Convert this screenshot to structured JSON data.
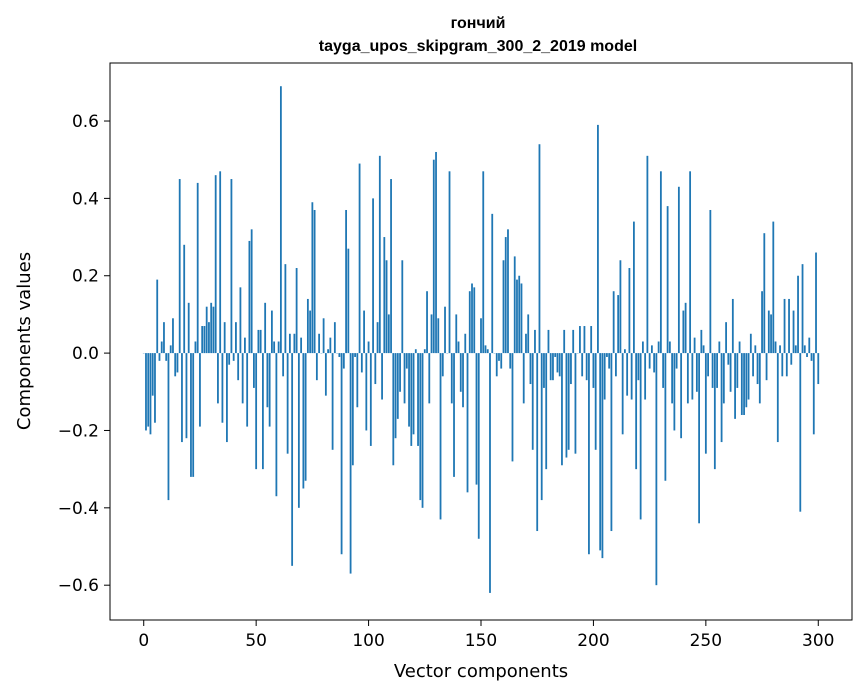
{
  "chart_data": {
    "type": "bar",
    "title": "гончий",
    "subtitle": "tayga_upos_skipgram_300_2_2019 model",
    "xlabel": "Vector components",
    "ylabel": "Components values",
    "xlim": [
      -15,
      315
    ],
    "ylim": [
      -0.69,
      0.75
    ],
    "xticks": [
      0,
      50,
      100,
      150,
      200,
      250,
      300
    ],
    "xtick_labels": [
      "0",
      "50",
      "100",
      "150",
      "200",
      "250",
      "300"
    ],
    "yticks": [
      -0.6,
      -0.4,
      -0.2,
      0.0,
      0.2,
      0.4,
      0.6
    ],
    "ytick_labels": [
      "−0.6",
      "−0.4",
      "−0.2",
      "0.0",
      "0.2",
      "0.4",
      "0.6"
    ],
    "bar_color": "#1f77b4",
    "grid": false,
    "legend": "none",
    "values": [
      0.0,
      -0.2,
      -0.19,
      -0.21,
      -0.11,
      -0.18,
      0.19,
      -0.02,
      0.03,
      0.08,
      -0.02,
      -0.38,
      0.02,
      0.09,
      -0.06,
      -0.05,
      0.45,
      -0.23,
      0.28,
      -0.22,
      0.13,
      -0.32,
      -0.32,
      0.03,
      0.44,
      -0.19,
      0.07,
      0.07,
      0.12,
      0.08,
      0.13,
      0.12,
      0.46,
      -0.13,
      0.47,
      -0.18,
      0.08,
      -0.23,
      -0.03,
      0.45,
      -0.02,
      0.08,
      -0.07,
      0.17,
      -0.13,
      0.04,
      -0.19,
      0.29,
      0.32,
      -0.09,
      -0.3,
      0.06,
      0.06,
      -0.3,
      0.13,
      -0.14,
      -0.19,
      0.11,
      0.03,
      -0.37,
      0.03,
      0.69,
      -0.06,
      0.23,
      -0.26,
      0.05,
      -0.55,
      0.05,
      0.22,
      -0.4,
      0.04,
      -0.35,
      -0.33,
      0.14,
      0.11,
      0.39,
      0.37,
      -0.07,
      0.05,
      0.0,
      0.09,
      -0.11,
      0.01,
      0.04,
      -0.25,
      0.08,
      0.0,
      -0.01,
      -0.52,
      -0.04,
      0.37,
      0.27,
      -0.57,
      -0.29,
      -0.01,
      -0.14,
      0.49,
      -0.05,
      0.11,
      -0.2,
      0.03,
      -0.24,
      0.4,
      -0.08,
      0.08,
      0.51,
      -0.12,
      0.3,
      0.24,
      0.1,
      0.45,
      -0.29,
      -0.22,
      -0.17,
      -0.1,
      0.24,
      -0.13,
      -0.04,
      -0.19,
      -0.24,
      -0.21,
      0.01,
      -0.24,
      -0.38,
      -0.4,
      0.01,
      0.16,
      -0.13,
      0.1,
      0.5,
      0.52,
      0.09,
      -0.43,
      -0.06,
      0.12,
      0.0,
      0.47,
      -0.13,
      -0.32,
      0.1,
      0.03,
      -0.1,
      -0.14,
      0.05,
      -0.36,
      0.16,
      0.18,
      0.17,
      -0.34,
      -0.48,
      0.09,
      0.47,
      0.02,
      0.01,
      -0.62,
      0.36,
      0.0,
      -0.06,
      -0.02,
      -0.04,
      0.24,
      0.3,
      0.32,
      -0.04,
      -0.28,
      0.25,
      0.19,
      0.2,
      0.18,
      -0.13,
      0.05,
      0.1,
      -0.08,
      -0.25,
      0.06,
      -0.46,
      0.54,
      -0.38,
      -0.09,
      -0.3,
      0.06,
      -0.07,
      -0.07,
      -0.01,
      -0.05,
      -0.06,
      -0.29,
      0.06,
      -0.27,
      -0.25,
      -0.08,
      0.06,
      -0.26,
      0.0,
      0.07,
      -0.06,
      0.07,
      -0.07,
      -0.52,
      0.07,
      -0.09,
      -0.25,
      0.59,
      -0.51,
      -0.53,
      -0.12,
      -0.01,
      -0.04,
      -0.46,
      0.16,
      -0.06,
      0.15,
      0.24,
      -0.21,
      0.01,
      -0.11,
      0.22,
      -0.12,
      0.34,
      -0.3,
      -0.07,
      -0.43,
      0.03,
      -0.12,
      0.51,
      -0.04,
      0.02,
      -0.05,
      -0.6,
      0.03,
      0.47,
      -0.09,
      -0.33,
      0.38,
      0.03,
      -0.13,
      -0.2,
      -0.04,
      0.43,
      -0.22,
      0.11,
      0.13,
      -0.13,
      0.47,
      -0.12,
      0.04,
      -0.1,
      -0.44,
      0.06,
      0.02,
      -0.26,
      -0.06,
      0.37,
      -0.09,
      -0.3,
      -0.09,
      0.03,
      -0.23,
      -0.13,
      0.08,
      -0.03,
      -0.1,
      0.14,
      -0.17,
      -0.09,
      0.03,
      -0.16,
      -0.16,
      -0.14,
      -0.12,
      0.05,
      -0.06,
      0.02,
      -0.08,
      -0.13,
      0.16,
      0.31,
      -0.07,
      0.11,
      0.1,
      0.34,
      0.03,
      -0.23,
      0.02,
      -0.06,
      0.14,
      -0.06,
      0.14,
      -0.03,
      0.11,
      0.02,
      0.2,
      -0.41,
      0.23,
      0.02,
      -0.01,
      0.04,
      -0.02,
      -0.21,
      0.26,
      -0.08
    ]
  }
}
